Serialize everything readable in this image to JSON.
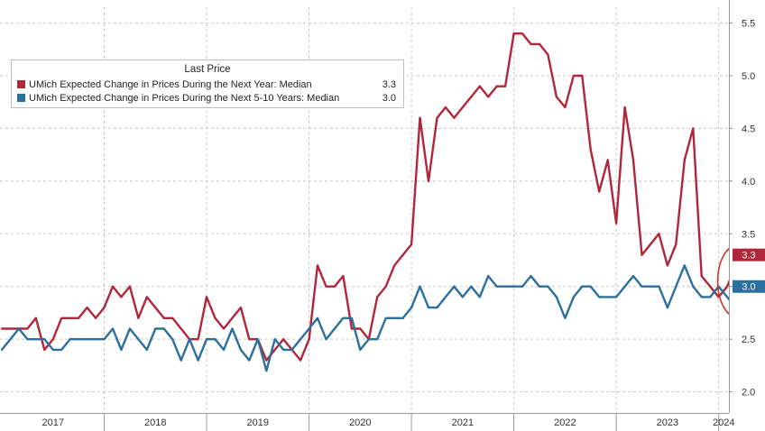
{
  "chart_data": {
    "type": "line",
    "title": "",
    "xlabel": "",
    "ylabel": "",
    "ylim": [
      1.8,
      5.65
    ],
    "y_ticks": [
      "2.0",
      "2.5",
      "3.0",
      "3.5",
      "4.0",
      "4.5",
      "5.0",
      "5.5"
    ],
    "x_tick_labels": [
      "2017",
      "2018",
      "2019",
      "2020",
      "2021",
      "2022",
      "2023",
      "2024"
    ],
    "x_start": "2017-01",
    "grid": true,
    "legend": {
      "title": "Last Price",
      "placement": "top-left"
    },
    "series": [
      {
        "name": "UMich Expected Change in Prices During the Next Year: Median",
        "color": "#b0273a",
        "last_value": "3.3",
        "values": [
          2.6,
          2.6,
          2.6,
          2.6,
          2.7,
          2.4,
          2.5,
          2.7,
          2.7,
          2.7,
          2.8,
          2.7,
          2.8,
          3.0,
          2.9,
          3.0,
          2.7,
          2.9,
          2.8,
          2.7,
          2.7,
          2.6,
          2.5,
          2.5,
          2.9,
          2.7,
          2.6,
          2.7,
          2.8,
          2.5,
          2.5,
          2.3,
          2.4,
          2.5,
          2.4,
          2.3,
          2.5,
          3.2,
          3.0,
          3.0,
          3.1,
          2.6,
          2.6,
          2.5,
          2.9,
          3.0,
          3.2,
          3.3,
          3.4,
          4.6,
          4.0,
          4.6,
          4.7,
          4.6,
          4.7,
          4.8,
          4.9,
          4.8,
          4.9,
          4.9,
          5.4,
          5.4,
          5.3,
          5.3,
          5.2,
          4.8,
          4.7,
          5.0,
          5.0,
          4.3,
          3.9,
          4.2,
          3.6,
          4.7,
          4.2,
          3.3,
          3.4,
          3.5,
          3.2,
          3.4,
          4.2,
          4.5,
          3.1,
          3.0,
          2.9,
          3.0,
          3.2,
          3.25,
          3.3
        ],
        "highlighted_range": "last 5 points circled"
      },
      {
        "name": "UMich Expected Change in Prices During the Next 5-10 Years: Median",
        "color": "#2b6f9e",
        "last_value": "3.0",
        "values": [
          2.4,
          2.5,
          2.6,
          2.5,
          2.5,
          2.5,
          2.4,
          2.4,
          2.5,
          2.5,
          2.5,
          2.5,
          2.5,
          2.6,
          2.4,
          2.6,
          2.5,
          2.4,
          2.6,
          2.6,
          2.5,
          2.3,
          2.5,
          2.3,
          2.5,
          2.5,
          2.4,
          2.6,
          2.4,
          2.3,
          2.5,
          2.2,
          2.5,
          2.4,
          2.4,
          2.5,
          2.6,
          2.7,
          2.5,
          2.6,
          2.7,
          2.7,
          2.4,
          2.5,
          2.5,
          2.7,
          2.7,
          2.7,
          2.8,
          3.0,
          2.8,
          2.8,
          2.9,
          3.0,
          2.9,
          3.0,
          2.9,
          3.1,
          3.0,
          3.0,
          3.0,
          3.0,
          3.1,
          3.0,
          3.0,
          2.9,
          2.7,
          2.9,
          3.0,
          3.0,
          2.9,
          2.9,
          2.9,
          3.0,
          3.1,
          3.0,
          3.0,
          3.0,
          2.8,
          3.0,
          3.2,
          3.0,
          2.9,
          2.9,
          3.0,
          2.9,
          2.8,
          3.0,
          3.0
        ]
      }
    ]
  }
}
